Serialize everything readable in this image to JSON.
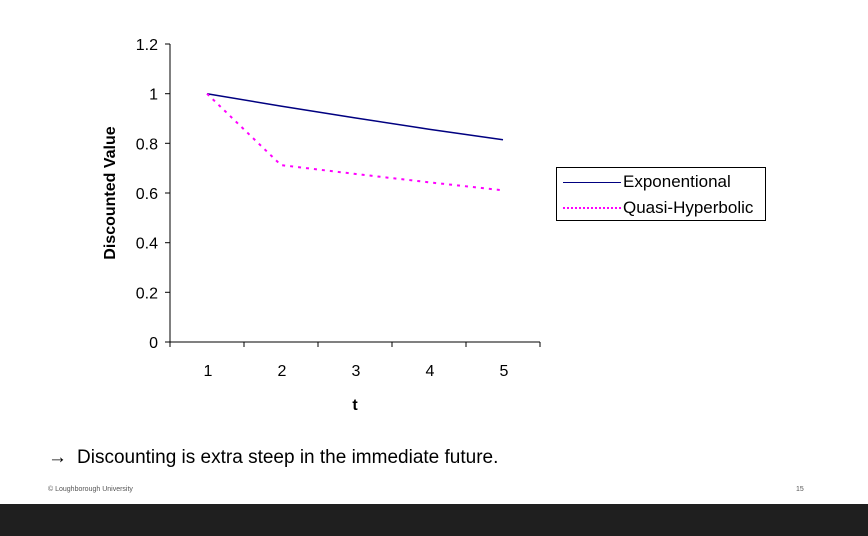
{
  "chart_data": {
    "type": "line",
    "title": "",
    "xlabel": "t",
    "ylabel": "Discounted Value",
    "categories": [
      "1",
      "2",
      "3",
      "4",
      "5"
    ],
    "x": [
      1,
      2,
      3,
      4,
      5
    ],
    "series": [
      {
        "name": "Exponentional",
        "values": [
          1.0,
          0.95,
          0.9025,
          0.857,
          0.8145
        ],
        "color": "#000080",
        "style": "solid"
      },
      {
        "name": "Quasi-Hyperbolic",
        "values": [
          1.0,
          0.7125,
          0.677,
          0.643,
          0.611
        ],
        "color": "#ff00ff",
        "style": "dotted"
      }
    ],
    "yticks": [
      "0",
      "0.2",
      "0.4",
      "0.6",
      "0.8",
      "1",
      "1.2"
    ],
    "ylim": [
      0,
      1.2
    ],
    "grid": false,
    "legend_position": "right"
  },
  "chart": {
    "ylabel": "Discounted Value",
    "xlabel": "t",
    "yticks": [
      "0",
      "0.2",
      "0.4",
      "0.6",
      "0.8",
      "1",
      "1.2"
    ],
    "xticks": [
      "1",
      "2",
      "3",
      "4",
      "5"
    ]
  },
  "legend": {
    "items": [
      {
        "label": "Exponentional",
        "color": "#000080"
      },
      {
        "label": "Quasi-Hyperbolic",
        "color": "#ff00ff"
      }
    ]
  },
  "slide": {
    "arrow": "→",
    "takeaway": "Discounting is extra steep in the immediate future.",
    "footer_left": "© Loughborough University",
    "page_number": "15"
  }
}
